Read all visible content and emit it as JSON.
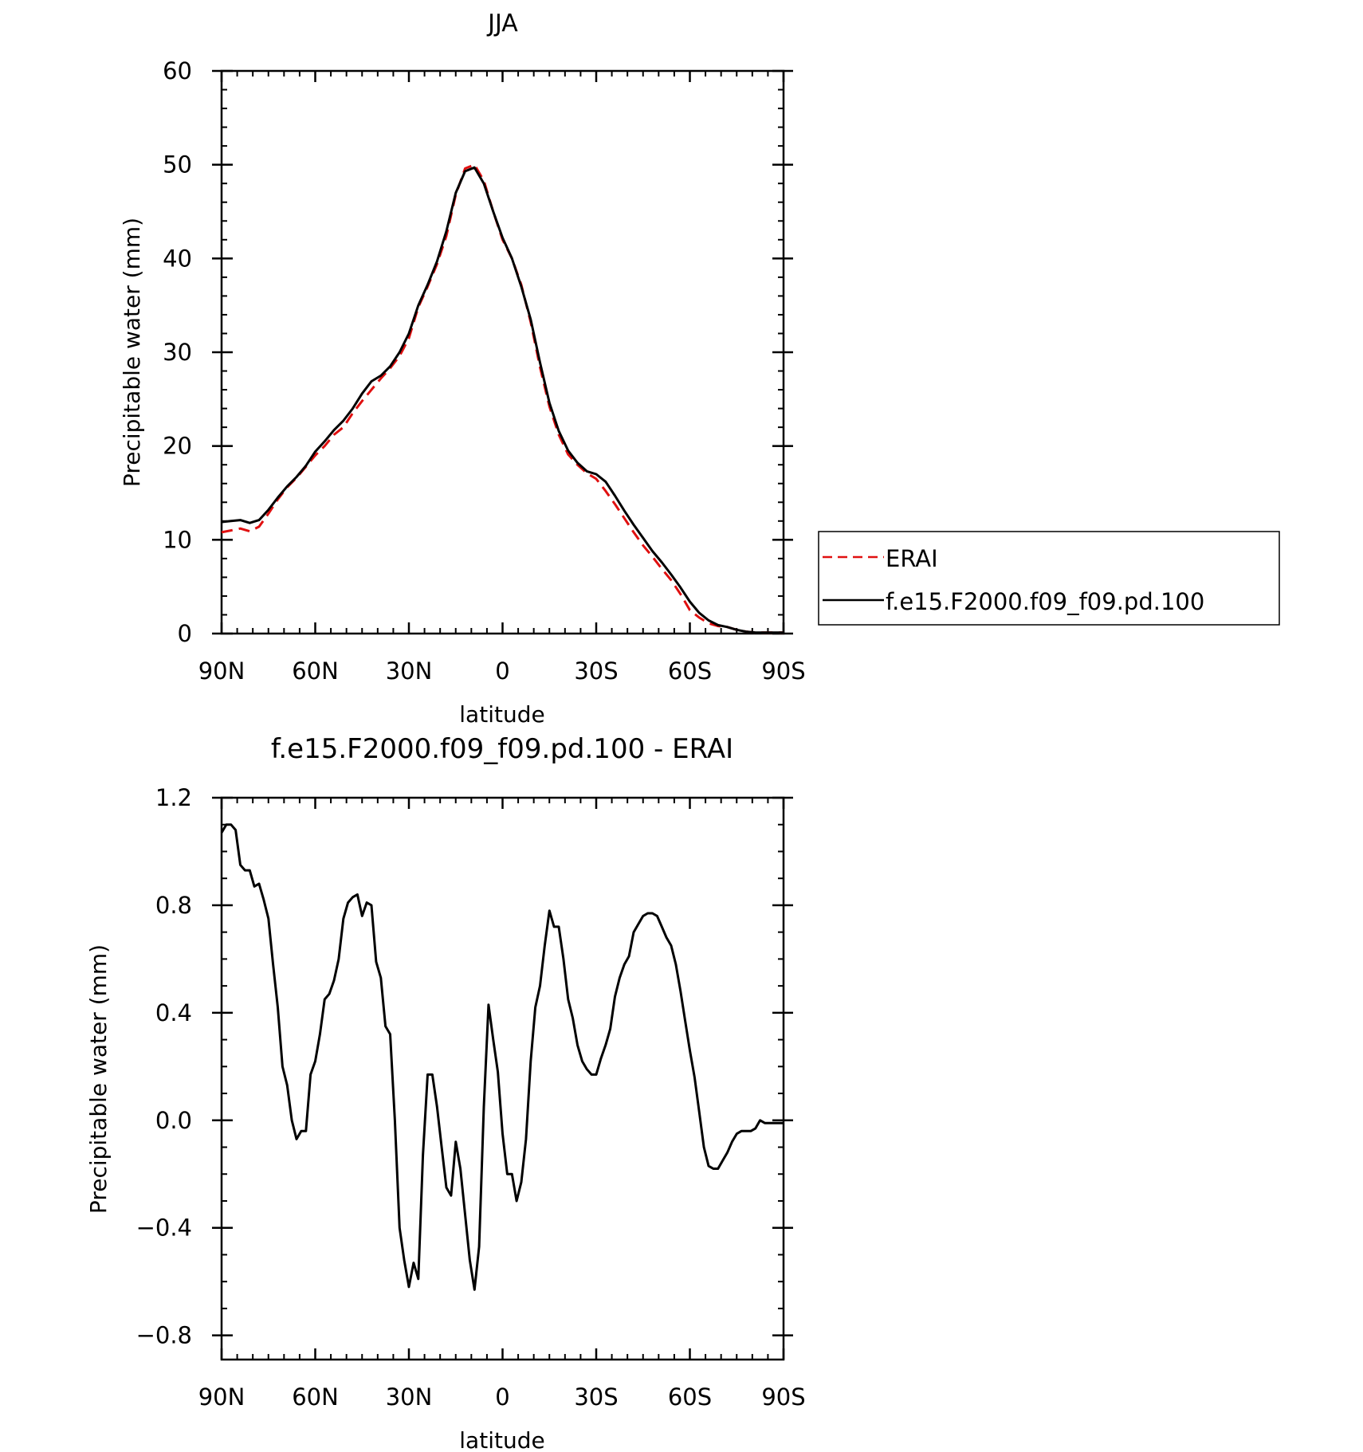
{
  "chart_data": [
    {
      "type": "line",
      "title": "JJA",
      "xlabel": "latitude",
      "ylabel": "Precipitable water (mm)",
      "xlim": [
        90,
        -90
      ],
      "ylim": [
        0,
        60
      ],
      "x_ticks": [
        90,
        60,
        30,
        0,
        -30,
        -60,
        -90
      ],
      "x_tick_labels": [
        "90N",
        "60N",
        "30N",
        "0",
        "30S",
        "60S",
        "90S"
      ],
      "y_ticks": [
        0,
        10,
        20,
        30,
        40,
        50,
        60
      ],
      "y_tick_labels": [
        "0",
        "10",
        "20",
        "30",
        "40",
        "50",
        "60"
      ],
      "legend": {
        "placement": "right",
        "entries": [
          {
            "label": "ERAI",
            "color": "#e01010",
            "style": "dashed"
          },
          {
            "label": "f.e15.F2000.f09_f09.pd.100",
            "color": "#000000",
            "style": "solid"
          }
        ]
      },
      "series": [
        {
          "name": "ERAI",
          "color": "#e01010",
          "style": "dashed",
          "x": [
            90,
            87,
            84,
            81,
            78,
            75,
            72,
            69,
            66,
            63,
            60,
            57,
            54,
            51,
            48,
            45,
            42,
            39,
            36,
            33,
            30,
            27,
            24,
            21,
            18,
            15,
            12,
            9,
            6,
            3,
            0,
            -3,
            -6,
            -9,
            -12,
            -15,
            -18,
            -21,
            -24,
            -27,
            -30,
            -33,
            -36,
            -39,
            -42,
            -45,
            -48,
            -51,
            -54,
            -57,
            -60,
            -63,
            -66,
            -69,
            -72,
            -75,
            -78,
            -81,
            -84,
            -87,
            -90
          ],
          "y": [
            10.8,
            11.0,
            11.2,
            10.9,
            11.4,
            12.8,
            14.3,
            15.6,
            16.6,
            17.8,
            19.0,
            20.0,
            21.2,
            22.0,
            23.5,
            24.8,
            26.0,
            27.2,
            28.3,
            29.6,
            31.5,
            34.8,
            37.0,
            39.4,
            42.4,
            46.8,
            49.6,
            50.0,
            48.3,
            45.0,
            42.0,
            40.0,
            37.2,
            33.2,
            28.4,
            24.2,
            21.2,
            19.1,
            18.0,
            17.1,
            16.5,
            15.2,
            13.8,
            12.3,
            10.8,
            9.4,
            8.2,
            6.9,
            5.7,
            4.2,
            2.5,
            1.7,
            1.1,
            0.8,
            0.7,
            0.4,
            0.2,
            0.1,
            0.1,
            0.1,
            0.1
          ]
        },
        {
          "name": "f.e15.F2000.f09_f09.pd.100",
          "color": "#000000",
          "style": "solid",
          "x": [
            90,
            87,
            84,
            81,
            78,
            75,
            72,
            69,
            66,
            63,
            60,
            57,
            54,
            51,
            48,
            45,
            42,
            39,
            36,
            33,
            30,
            27,
            24,
            21,
            18,
            15,
            12,
            9,
            6,
            3,
            0,
            -3,
            -6,
            -9,
            -12,
            -15,
            -18,
            -21,
            -24,
            -27,
            -30,
            -33,
            -36,
            -39,
            -42,
            -45,
            -48,
            -51,
            -54,
            -57,
            -60,
            -63,
            -66,
            -69,
            -72,
            -75,
            -78,
            -81,
            -84,
            -87,
            -90
          ],
          "y": [
            11.9,
            12.0,
            12.1,
            11.8,
            12.1,
            13.2,
            14.5,
            15.7,
            16.7,
            17.9,
            19.4,
            20.5,
            21.7,
            22.7,
            24.0,
            25.6,
            26.9,
            27.5,
            28.5,
            30.0,
            32.0,
            35.0,
            37.2,
            39.7,
            42.9,
            47.0,
            49.3,
            49.7,
            48.0,
            45.0,
            42.2,
            40.0,
            37.0,
            33.5,
            28.9,
            24.6,
            21.6,
            19.5,
            18.2,
            17.3,
            17.0,
            16.2,
            14.7,
            13.1,
            11.6,
            10.2,
            8.8,
            7.6,
            6.3,
            4.9,
            3.4,
            2.2,
            1.4,
            0.9,
            0.7,
            0.4,
            0.2,
            0.1,
            0.1,
            0.1,
            0.1
          ]
        }
      ]
    },
    {
      "type": "line",
      "title": "f.e15.F2000.f09_f09.pd.100 - ERAI",
      "xlabel": "latitude",
      "ylabel": "Precipitable water (mm)",
      "xlim": [
        90,
        -90
      ],
      "ylim": [
        -0.89,
        1.2
      ],
      "x_ticks": [
        90,
        60,
        30,
        0,
        -30,
        -60,
        -90
      ],
      "x_tick_labels": [
        "90N",
        "60N",
        "30N",
        "0",
        "30S",
        "60S",
        "90S"
      ],
      "y_ticks": [
        1.2,
        0.8,
        0.4,
        0.0,
        -0.4,
        -0.8
      ],
      "y_tick_labels": [
        "1.2",
        "0.8",
        "0.4",
        "0.0",
        "−0.4",
        "−0.8"
      ],
      "series": [
        {
          "name": "",
          "color": "#000000",
          "style": "solid",
          "x": [
            90,
            88.5,
            87,
            85.5,
            84,
            82.5,
            81,
            79.5,
            78,
            76.5,
            75,
            73.5,
            72,
            70.5,
            69,
            67.5,
            66,
            64.5,
            63,
            61.5,
            60,
            58.5,
            57,
            55.5,
            54,
            52.5,
            51,
            49.5,
            48,
            46.5,
            45,
            43.5,
            42,
            40.5,
            39,
            37.5,
            36,
            34.5,
            33,
            31.5,
            30,
            28.5,
            27,
            25.5,
            24,
            22.5,
            21,
            19.5,
            18,
            16.5,
            15,
            13.5,
            12,
            10.5,
            9,
            7.5,
            6,
            4.5,
            3,
            1.5,
            0,
            -1.5,
            -3,
            -4.5,
            -6,
            -7.5,
            -9,
            -10.5,
            -12,
            -13.5,
            -15,
            -16.5,
            -18,
            -19.5,
            -21,
            -22.5,
            -24,
            -25.5,
            -27,
            -28.5,
            -30,
            -31.5,
            -33,
            -34.5,
            -36,
            -37.5,
            -39,
            -40.5,
            -42,
            -43.5,
            -45,
            -46.5,
            -48,
            -49.5,
            -51,
            -52.5,
            -54,
            -55.5,
            -57,
            -58.5,
            -60,
            -61.5,
            -63,
            -64.5,
            -66,
            -67.5,
            -69,
            -70.5,
            -72,
            -73.5,
            -75,
            -76.5,
            -78,
            -79.5,
            -81,
            -82.5,
            -84,
            -85.5,
            -87,
            -88.5,
            -90
          ],
          "y": [
            1.07,
            1.1,
            1.1,
            1.08,
            0.95,
            0.93,
            0.93,
            0.87,
            0.88,
            0.82,
            0.75,
            0.58,
            0.42,
            0.2,
            0.13,
            0.0,
            -0.07,
            -0.04,
            -0.04,
            0.17,
            0.22,
            0.32,
            0.45,
            0.47,
            0.52,
            0.6,
            0.75,
            0.81,
            0.83,
            0.84,
            0.76,
            0.81,
            0.8,
            0.59,
            0.53,
            0.35,
            0.32,
            0.0,
            -0.4,
            -0.52,
            -0.62,
            -0.53,
            -0.59,
            -0.13,
            0.17,
            0.17,
            0.05,
            -0.1,
            -0.25,
            -0.28,
            -0.08,
            -0.18,
            -0.35,
            -0.52,
            -0.63,
            -0.47,
            0.05,
            0.43,
            0.3,
            0.18,
            -0.05,
            -0.2,
            -0.2,
            -0.3,
            -0.23,
            -0.07,
            0.22,
            0.42,
            0.5,
            0.65,
            0.78,
            0.72,
            0.72,
            0.6,
            0.45,
            0.38,
            0.28,
            0.22,
            0.19,
            0.17,
            0.17,
            0.23,
            0.28,
            0.34,
            0.46,
            0.53,
            0.58,
            0.61,
            0.7,
            0.73,
            0.76,
            0.77,
            0.77,
            0.76,
            0.72,
            0.68,
            0.65,
            0.58,
            0.48,
            0.37,
            0.26,
            0.16,
            0.03,
            -0.1,
            -0.17,
            -0.18,
            -0.18,
            -0.15,
            -0.12,
            -0.08,
            -0.05,
            -0.04,
            -0.04,
            -0.04,
            -0.03,
            0.0,
            -0.01,
            -0.01,
            -0.01,
            -0.01,
            -0.01
          ]
        }
      ]
    }
  ]
}
